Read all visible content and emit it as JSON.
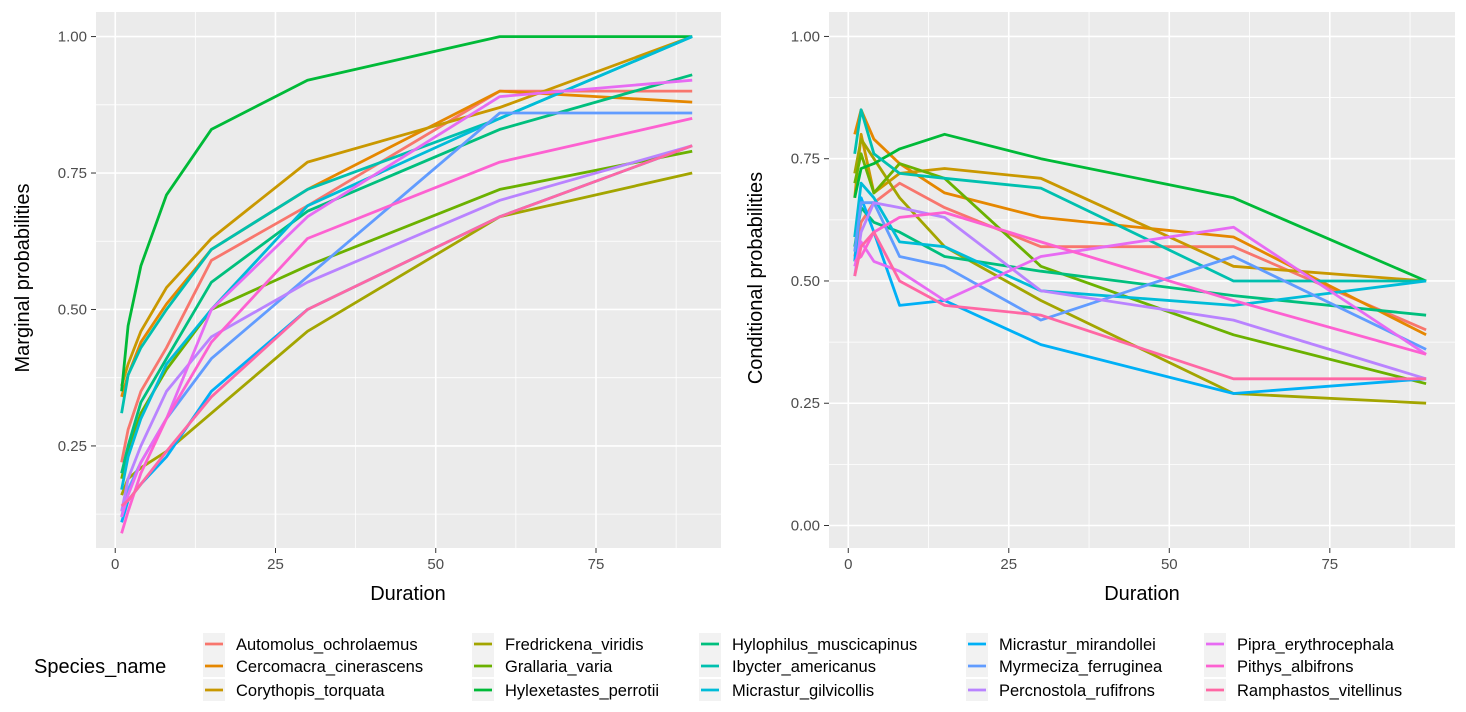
{
  "chart_data": [
    {
      "type": "line",
      "xlabel": "Duration",
      "ylabel": "Marginal probabilities",
      "xlim": [
        -3,
        94.5
      ],
      "ylim": [
        0.063,
        1.045
      ],
      "xticks": [
        0,
        25,
        50,
        75
      ],
      "xtick_labels": [
        "0",
        "25",
        "50",
        "75"
      ],
      "yticks": [
        0.25,
        0.5,
        0.75,
        1.0
      ],
      "ytick_labels": [
        "0.25",
        "0.50",
        "0.75",
        "1.00"
      ],
      "grid": true,
      "x": [
        1,
        2,
        4,
        8,
        15,
        30,
        60,
        90
      ],
      "series": [
        {
          "name": "Automolus_ochrolaemus",
          "values": [
            0.22,
            0.28,
            0.35,
            0.43,
            0.59,
            0.69,
            0.9,
            0.9
          ]
        },
        {
          "name": "Cercomacra_cinerascens",
          "values": [
            0.34,
            0.38,
            0.44,
            0.51,
            0.61,
            0.72,
            0.9,
            0.88
          ]
        },
        {
          "name": "Corythopis_torquata",
          "values": [
            0.36,
            0.4,
            0.46,
            0.54,
            0.63,
            0.77,
            0.87,
            1.0
          ]
        },
        {
          "name": "Fredrickena_viridis",
          "values": [
            0.16,
            0.19,
            0.21,
            0.24,
            0.31,
            0.46,
            0.67,
            0.75
          ]
        },
        {
          "name": "Grallaria_varia",
          "values": [
            0.19,
            0.24,
            0.31,
            0.39,
            0.5,
            0.58,
            0.72,
            0.79
          ]
        },
        {
          "name": "Hylexetastes_perrotii",
          "values": [
            0.35,
            0.47,
            0.58,
            0.71,
            0.83,
            0.92,
            1.0,
            1.0
          ]
        },
        {
          "name": "Hylophilus_muscicapinus",
          "values": [
            0.2,
            0.25,
            0.33,
            0.41,
            0.55,
            0.68,
            0.83,
            0.93
          ]
        },
        {
          "name": "Ibycter_americanus",
          "values": [
            0.31,
            0.38,
            0.43,
            0.5,
            0.61,
            0.72,
            0.85,
            1.0
          ]
        },
        {
          "name": "Micrastur_gilvicollis",
          "values": [
            0.17,
            0.23,
            0.3,
            0.4,
            0.5,
            0.69,
            0.85,
            1.0
          ]
        },
        {
          "name": "Micrastur_mirandollei",
          "values": [
            0.11,
            0.15,
            0.18,
            0.23,
            0.35,
            0.5,
            0.67,
            0.8
          ]
        },
        {
          "name": "Myrmeciza_ferruginea",
          "values": [
            0.12,
            0.17,
            0.22,
            0.3,
            0.41,
            0.56,
            0.86,
            0.86
          ]
        },
        {
          "name": "Percnostola_rufifrons",
          "values": [
            0.13,
            0.19,
            0.25,
            0.35,
            0.45,
            0.55,
            0.7,
            0.8
          ]
        },
        {
          "name": "Pipra_erythrocephala",
          "values": [
            0.12,
            0.16,
            0.22,
            0.3,
            0.5,
            0.67,
            0.89,
            0.92
          ]
        },
        {
          "name": "Pithys_albifrons",
          "values": [
            0.09,
            0.13,
            0.2,
            0.3,
            0.44,
            0.63,
            0.77,
            0.85
          ]
        },
        {
          "name": "Ramphastos_vitellinus",
          "values": [
            0.14,
            0.15,
            0.18,
            0.24,
            0.34,
            0.5,
            0.67,
            0.8
          ]
        }
      ]
    },
    {
      "type": "line",
      "xlabel": "Duration",
      "ylabel": "Conditional probabilities",
      "xlim": [
        -3,
        94.5
      ],
      "ylim": [
        -0.046,
        1.05
      ],
      "xticks": [
        0,
        25,
        50,
        75
      ],
      "xtick_labels": [
        "0",
        "25",
        "50",
        "75"
      ],
      "yticks": [
        0.0,
        0.25,
        0.5,
        0.75,
        1.0
      ],
      "ytick_labels": [
        "0.00",
        "0.25",
        "0.50",
        "0.75",
        "1.00"
      ],
      "grid": true,
      "x": [
        1,
        2,
        4,
        8,
        15,
        30,
        60,
        90
      ],
      "series": [
        {
          "name": "Automolus_ochrolaemus",
          "values": [
            0.55,
            0.62,
            0.66,
            0.7,
            0.65,
            0.57,
            0.57,
            0.4
          ]
        },
        {
          "name": "Cercomacra_cinerascens",
          "values": [
            0.8,
            0.85,
            0.79,
            0.74,
            0.68,
            0.63,
            0.59,
            0.39
          ]
        },
        {
          "name": "Corythopis_torquata",
          "values": [
            0.67,
            0.8,
            0.68,
            0.72,
            0.73,
            0.71,
            0.53,
            0.5
          ]
        },
        {
          "name": "Fredrickena_viridis",
          "values": [
            0.72,
            0.79,
            0.75,
            0.67,
            0.57,
            0.46,
            0.27,
            0.25
          ]
        },
        {
          "name": "Grallaria_varia",
          "values": [
            0.7,
            0.76,
            0.68,
            0.74,
            0.71,
            0.53,
            0.39,
            0.29
          ]
        },
        {
          "name": "Hylexetastes_perrotii",
          "values": [
            0.67,
            0.73,
            0.74,
            0.77,
            0.8,
            0.75,
            0.67,
            0.5
          ]
        },
        {
          "name": "Hylophilus_muscicapinus",
          "values": [
            0.57,
            0.65,
            0.62,
            0.6,
            0.55,
            0.52,
            0.47,
            0.43
          ]
        },
        {
          "name": "Ibycter_americanus",
          "values": [
            0.76,
            0.85,
            0.76,
            0.72,
            0.71,
            0.69,
            0.5,
            0.5
          ]
        },
        {
          "name": "Micrastur_gilvicollis",
          "values": [
            0.59,
            0.7,
            0.67,
            0.58,
            0.57,
            0.48,
            0.45,
            0.5
          ]
        },
        {
          "name": "Micrastur_mirandollei",
          "values": [
            0.54,
            0.67,
            0.6,
            0.45,
            0.46,
            0.37,
            0.27,
            0.3
          ]
        },
        {
          "name": "Myrmeciza_ferruginea",
          "values": [
            0.56,
            0.66,
            0.66,
            0.55,
            0.53,
            0.42,
            0.55,
            0.36
          ]
        },
        {
          "name": "Percnostola_rufifrons",
          "values": [
            0.51,
            0.6,
            0.66,
            0.65,
            0.63,
            0.48,
            0.42,
            0.3
          ]
        },
        {
          "name": "Pipra_erythrocephala",
          "values": [
            0.53,
            0.58,
            0.54,
            0.52,
            0.46,
            0.55,
            0.61,
            0.35
          ]
        },
        {
          "name": "Pithys_albifrons",
          "values": [
            0.54,
            0.55,
            0.6,
            0.63,
            0.64,
            0.58,
            0.46,
            0.35
          ]
        },
        {
          "name": "Ramphastos_vitellinus",
          "values": [
            0.51,
            0.57,
            0.6,
            0.5,
            0.45,
            0.43,
            0.3,
            0.3
          ]
        }
      ]
    }
  ],
  "legend": {
    "title": "Species_name",
    "position": "bottom",
    "items": [
      {
        "label": "Automolus_ochrolaemus",
        "color": "#F8766D"
      },
      {
        "label": "Cercomacra_cinerascens",
        "color": "#E58700"
      },
      {
        "label": "Corythopis_torquata",
        "color": "#C99800"
      },
      {
        "label": "Fredrickena_viridis",
        "color": "#A3A500"
      },
      {
        "label": "Grallaria_varia",
        "color": "#6BB100"
      },
      {
        "label": "Hylexetastes_perrotii",
        "color": "#00BA38"
      },
      {
        "label": "Hylophilus_muscicapinus",
        "color": "#00BF7D"
      },
      {
        "label": "Ibycter_americanus",
        "color": "#00C0AF"
      },
      {
        "label": "Micrastur_gilvicollis",
        "color": "#00BCD8"
      },
      {
        "label": "Micrastur_mirandollei",
        "color": "#00B0F6"
      },
      {
        "label": "Myrmeciza_ferruginea",
        "color": "#619CFF"
      },
      {
        "label": "Percnostola_rufifrons",
        "color": "#B983FF"
      },
      {
        "label": "Pipra_erythrocephala",
        "color": "#E76BF3"
      },
      {
        "label": "Pithys_albifrons",
        "color": "#FD61D1"
      },
      {
        "label": "Ramphastos_vitellinus",
        "color": "#FF67A4"
      }
    ]
  },
  "colors": {
    "panel_background": "#EBEBEB",
    "grid": "#FFFFFF",
    "tick_text": "#4D4D4D",
    "tick_mark": "#333333"
  }
}
